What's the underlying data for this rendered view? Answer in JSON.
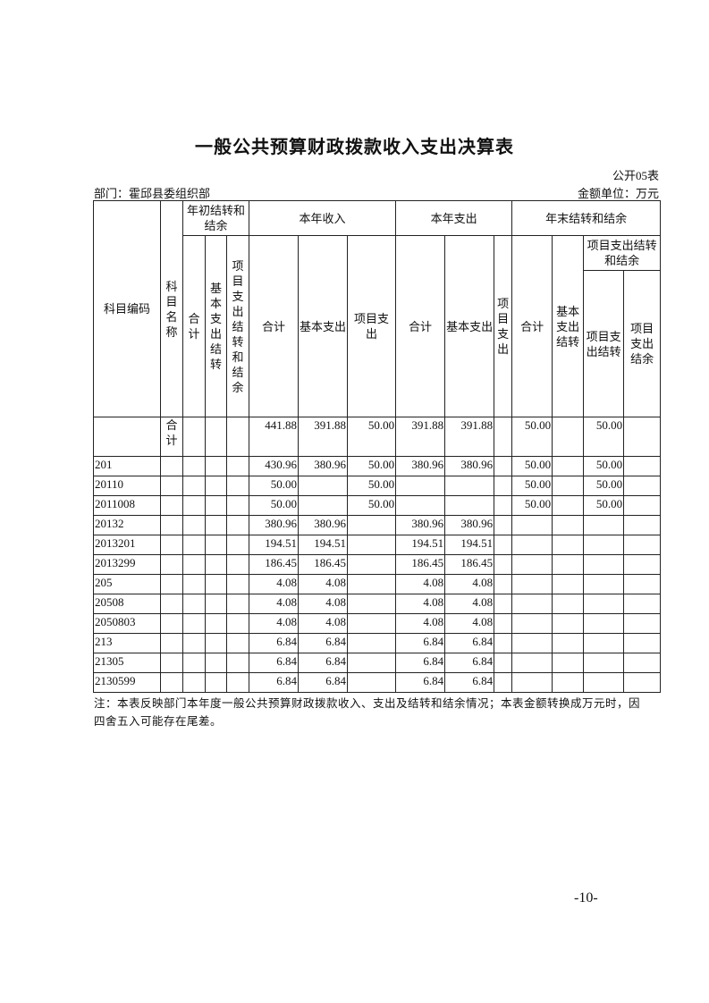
{
  "title": "一般公共预算财政拨款收入支出决算表",
  "form_no": "公开05表",
  "department": "部门：霍邱县委组织部",
  "unit": "金额单位：万元",
  "headers": {
    "code": "科目编码",
    "name": "科目名称",
    "begin": "年初结转和结余",
    "income": "本年收入",
    "expense": "本年支出",
    "end": "年末结转和结余",
    "total": "合计",
    "basic": "基本支出",
    "project": "项目支出",
    "basic_carry": "基本支出结转",
    "project_carry_balance": "项目支出结转和结余",
    "project_carry": "项目支出结转",
    "project_balance": "项目支出结余"
  },
  "rows": [
    {
      "code": "",
      "name": "合计",
      "cells": [
        "",
        "",
        "",
        "441.88",
        "391.88",
        "50.00",
        "391.88",
        "391.88",
        "",
        "50.00",
        "",
        "50.00",
        ""
      ]
    },
    {
      "code": "201",
      "name": "",
      "cells": [
        "",
        "",
        "",
        "430.96",
        "380.96",
        "50.00",
        "380.96",
        "380.96",
        "",
        "50.00",
        "",
        "50.00",
        ""
      ]
    },
    {
      "code": "20110",
      "name": "",
      "cells": [
        "",
        "",
        "",
        "50.00",
        "",
        "50.00",
        "",
        "",
        "",
        "50.00",
        "",
        "50.00",
        ""
      ]
    },
    {
      "code": "2011008",
      "name": "",
      "cells": [
        "",
        "",
        "",
        "50.00",
        "",
        "50.00",
        "",
        "",
        "",
        "50.00",
        "",
        "50.00",
        ""
      ]
    },
    {
      "code": "20132",
      "name": "",
      "cells": [
        "",
        "",
        "",
        "380.96",
        "380.96",
        "",
        "380.96",
        "380.96",
        "",
        "",
        "",
        "",
        ""
      ]
    },
    {
      "code": "2013201",
      "name": "",
      "cells": [
        "",
        "",
        "",
        "194.51",
        "194.51",
        "",
        "194.51",
        "194.51",
        "",
        "",
        "",
        "",
        ""
      ]
    },
    {
      "code": "2013299",
      "name": "",
      "cells": [
        "",
        "",
        "",
        "186.45",
        "186.45",
        "",
        "186.45",
        "186.45",
        "",
        "",
        "",
        "",
        ""
      ]
    },
    {
      "code": "205",
      "name": "",
      "cells": [
        "",
        "",
        "",
        "4.08",
        "4.08",
        "",
        "4.08",
        "4.08",
        "",
        "",
        "",
        "",
        ""
      ]
    },
    {
      "code": "20508",
      "name": "",
      "cells": [
        "",
        "",
        "",
        "4.08",
        "4.08",
        "",
        "4.08",
        "4.08",
        "",
        "",
        "",
        "",
        ""
      ]
    },
    {
      "code": "2050803",
      "name": "",
      "cells": [
        "",
        "",
        "",
        "4.08",
        "4.08",
        "",
        "4.08",
        "4.08",
        "",
        "",
        "",
        "",
        ""
      ]
    },
    {
      "code": "213",
      "name": "",
      "cells": [
        "",
        "",
        "",
        "6.84",
        "6.84",
        "",
        "6.84",
        "6.84",
        "",
        "",
        "",
        "",
        ""
      ]
    },
    {
      "code": "21305",
      "name": "",
      "cells": [
        "",
        "",
        "",
        "6.84",
        "6.84",
        "",
        "6.84",
        "6.84",
        "",
        "",
        "",
        "",
        ""
      ]
    },
    {
      "code": "2130599",
      "name": "",
      "cells": [
        "",
        "",
        "",
        "6.84",
        "6.84",
        "",
        "6.84",
        "6.84",
        "",
        "",
        "",
        "",
        ""
      ]
    }
  ],
  "note": "注：本表反映部门本年度一般公共预算财政拨款收入、支出及结转和结余情况；本表金额转换成万元时，因四舍五入可能存在尾差。",
  "page_number": "-10-"
}
